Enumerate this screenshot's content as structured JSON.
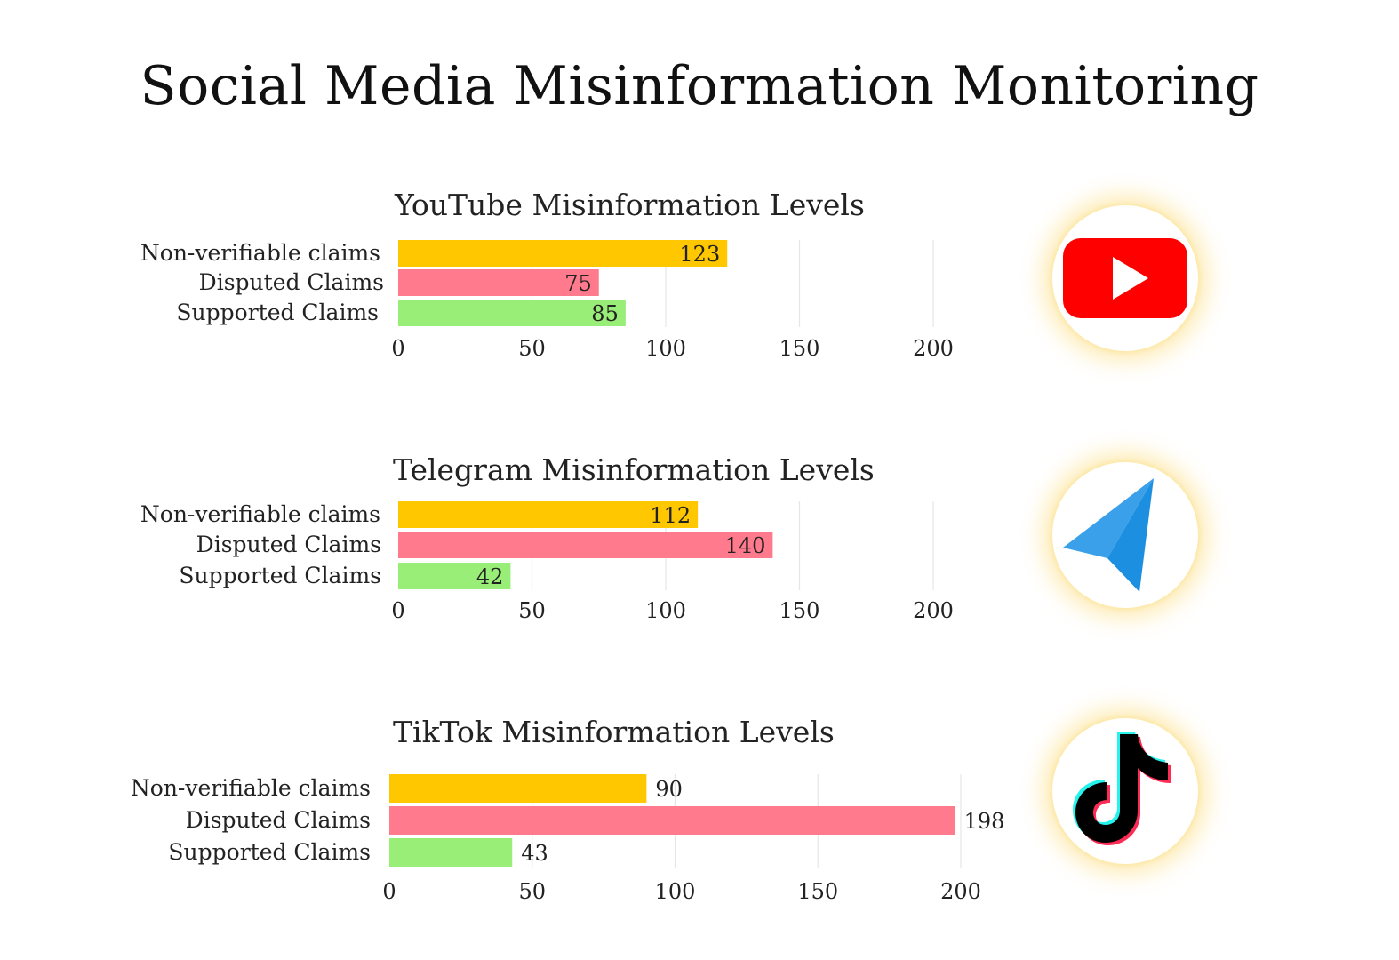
{
  "title": "Social Media Misinformation Monitoring",
  "colors": {
    "non_verifiable": "#ffc700",
    "disputed": "#ff7a8c",
    "supported": "#99ee77",
    "grid": "#e6e6e6"
  },
  "logos": [
    {
      "name": "youtube-icon"
    },
    {
      "name": "telegram-icon"
    },
    {
      "name": "tiktok-icon"
    }
  ],
  "chart_data": [
    {
      "type": "bar",
      "orientation": "horizontal",
      "title": "YouTube Misinformation Levels",
      "categories": [
        "Non-verifiable claims",
        "Disputed Claims",
        "Supported Claims"
      ],
      "values": [
        123,
        75,
        85
      ],
      "bar_colors": [
        "#ffc700",
        "#ff7a8c",
        "#99ee77"
      ],
      "xlim": [
        0,
        200
      ],
      "xticks": [
        0,
        50,
        100,
        150,
        200
      ],
      "value_label_position": "inside",
      "grid": true
    },
    {
      "type": "bar",
      "orientation": "horizontal",
      "title": "Telegram Misinformation Levels",
      "categories": [
        "Non-verifiable claims",
        "Disputed Claims",
        "Supported Claims"
      ],
      "values": [
        112,
        140,
        42
      ],
      "bar_colors": [
        "#ffc700",
        "#ff7a8c",
        "#99ee77"
      ],
      "xlim": [
        0,
        200
      ],
      "xticks": [
        0,
        50,
        100,
        150,
        200
      ],
      "value_label_position": "inside",
      "grid": true
    },
    {
      "type": "bar",
      "orientation": "horizontal",
      "title": "TikTok Misinformation Levels",
      "categories": [
        "Non-verifiable claims",
        "Disputed Claims",
        "Supported Claims"
      ],
      "values": [
        90,
        198,
        43
      ],
      "bar_colors": [
        "#ffc700",
        "#ff7a8c",
        "#99ee77"
      ],
      "xlim": [
        0,
        200
      ],
      "xticks": [
        0,
        50,
        100,
        150,
        200
      ],
      "value_label_position": "outside",
      "grid": true
    }
  ]
}
